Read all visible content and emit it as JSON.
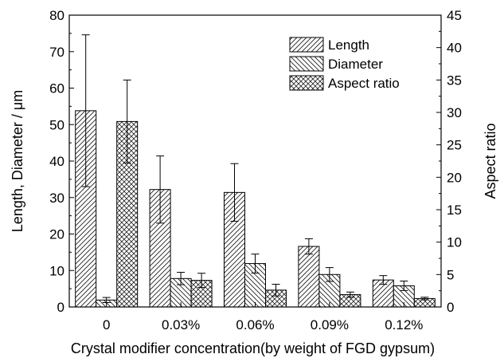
{
  "chart_data": {
    "type": "bar",
    "categories": [
      "0",
      "0.03%",
      "0.06%",
      "0.09%",
      "0.12%"
    ],
    "xlabel": "Crystal modifier concentration(by weight of FGD gypsum)",
    "ylabel": "Length, Diameter / μm",
    "y2label": "Aspect ratio",
    "ylim": [
      0,
      80
    ],
    "y2lim": [
      0,
      45
    ],
    "yticks": [
      0,
      10,
      20,
      30,
      40,
      50,
      60,
      70,
      80
    ],
    "y2ticks": [
      0,
      5,
      10,
      15,
      20,
      25,
      30,
      35,
      40,
      45
    ],
    "grid": false,
    "legend_position": "top-right",
    "series": [
      {
        "name": "Length",
        "axis": "left",
        "pattern": "forward-hatch",
        "values": [
          53.8,
          32.2,
          31.4,
          16.6,
          7.4
        ],
        "errors": [
          20.8,
          9.2,
          7.9,
          2.1,
          1.2
        ]
      },
      {
        "name": "Diameter",
        "axis": "left",
        "pattern": "back-hatch",
        "values": [
          1.9,
          7.8,
          11.9,
          8.9,
          5.8
        ],
        "errors": [
          0.7,
          1.7,
          2.6,
          1.9,
          1.3
        ]
      },
      {
        "name": "Aspect ratio",
        "axis": "right",
        "pattern": "cross-hatch",
        "values": [
          28.6,
          4.1,
          2.6,
          1.9,
          1.3
        ],
        "errors": [
          6.4,
          1.1,
          0.9,
          0.4,
          0.2
        ]
      }
    ]
  }
}
